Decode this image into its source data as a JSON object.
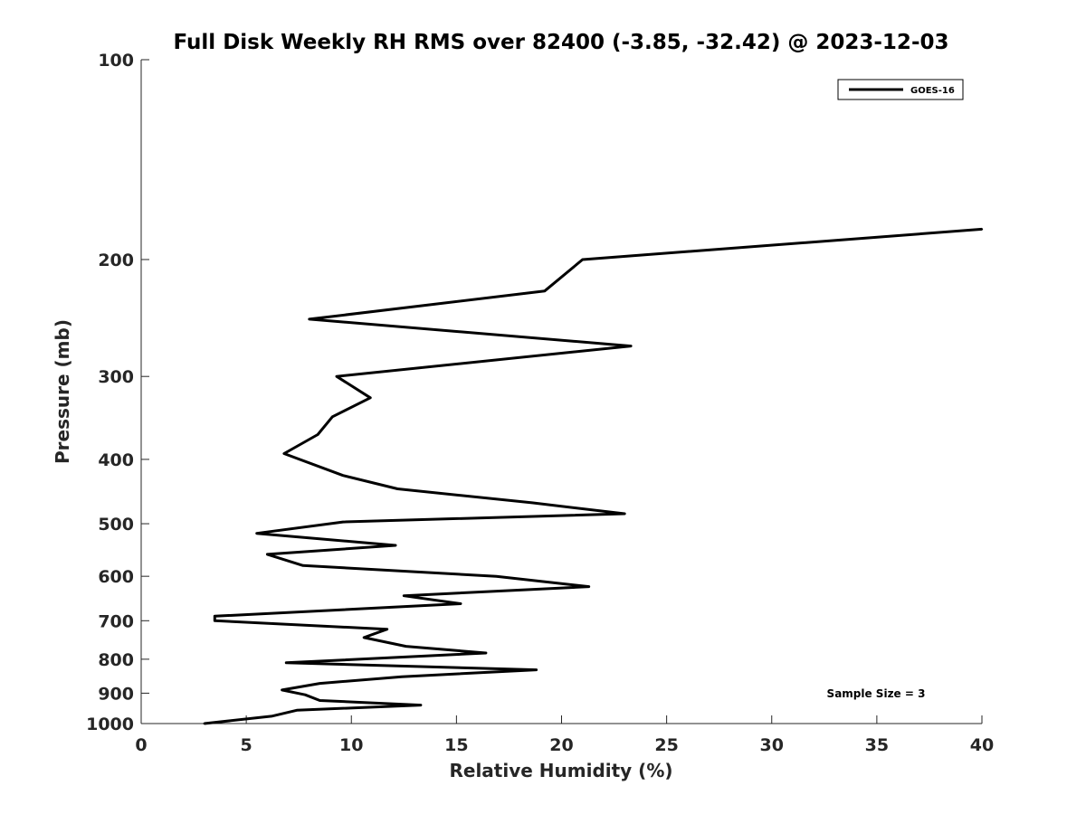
{
  "chart_data": {
    "type": "line",
    "title": "Full Disk Weekly RH RMS over 82400 (-3.85, -32.42) @ 2023-12-03",
    "xlabel": "Relative Humidity (%)",
    "ylabel": "Pressure (mb)",
    "xlim": [
      0,
      40
    ],
    "ylim": [
      100,
      1000
    ],
    "y_scale": "log",
    "y_reversed": true,
    "x_ticks": [
      "0",
      "5",
      "10",
      "15",
      "20",
      "25",
      "30",
      "35",
      "40"
    ],
    "y_ticks": [
      "100",
      "200",
      "300",
      "400",
      "500",
      "600",
      "700",
      "800",
      "900",
      "1000"
    ],
    "grid": false,
    "legend_position": "top-right",
    "series": [
      {
        "name": "GOES-16",
        "color": "#000000",
        "points": [
          {
            "x": 40.0,
            "y": 180
          },
          {
            "x": 21.0,
            "y": 200
          },
          {
            "x": 19.2,
            "y": 223
          },
          {
            "x": 8.0,
            "y": 246
          },
          {
            "x": 23.3,
            "y": 270
          },
          {
            "x": 9.3,
            "y": 300
          },
          {
            "x": 10.9,
            "y": 323
          },
          {
            "x": 9.1,
            "y": 345
          },
          {
            "x": 8.4,
            "y": 367
          },
          {
            "x": 6.8,
            "y": 392
          },
          {
            "x": 9.6,
            "y": 423
          },
          {
            "x": 12.2,
            "y": 443
          },
          {
            "x": 18.6,
            "y": 465
          },
          {
            "x": 23.0,
            "y": 483
          },
          {
            "x": 9.6,
            "y": 497
          },
          {
            "x": 5.5,
            "y": 517
          },
          {
            "x": 12.1,
            "y": 539
          },
          {
            "x": 6.0,
            "y": 556
          },
          {
            "x": 7.7,
            "y": 578
          },
          {
            "x": 16.9,
            "y": 600
          },
          {
            "x": 21.3,
            "y": 622
          },
          {
            "x": 12.5,
            "y": 642
          },
          {
            "x": 15.2,
            "y": 660
          },
          {
            "x": 3.5,
            "y": 689
          },
          {
            "x": 3.5,
            "y": 700
          },
          {
            "x": 11.7,
            "y": 721
          },
          {
            "x": 10.6,
            "y": 742
          },
          {
            "x": 12.6,
            "y": 765
          },
          {
            "x": 16.4,
            "y": 783
          },
          {
            "x": 6.9,
            "y": 810
          },
          {
            "x": 18.8,
            "y": 830
          },
          {
            "x": 12.4,
            "y": 850
          },
          {
            "x": 8.5,
            "y": 870
          },
          {
            "x": 6.7,
            "y": 890
          },
          {
            "x": 7.8,
            "y": 905
          },
          {
            "x": 8.5,
            "y": 923
          },
          {
            "x": 13.3,
            "y": 938
          },
          {
            "x": 7.4,
            "y": 955
          },
          {
            "x": 6.2,
            "y": 975
          },
          {
            "x": 3.0,
            "y": 1000
          }
        ]
      }
    ],
    "annotations": [
      "Sample Size = 3"
    ]
  }
}
